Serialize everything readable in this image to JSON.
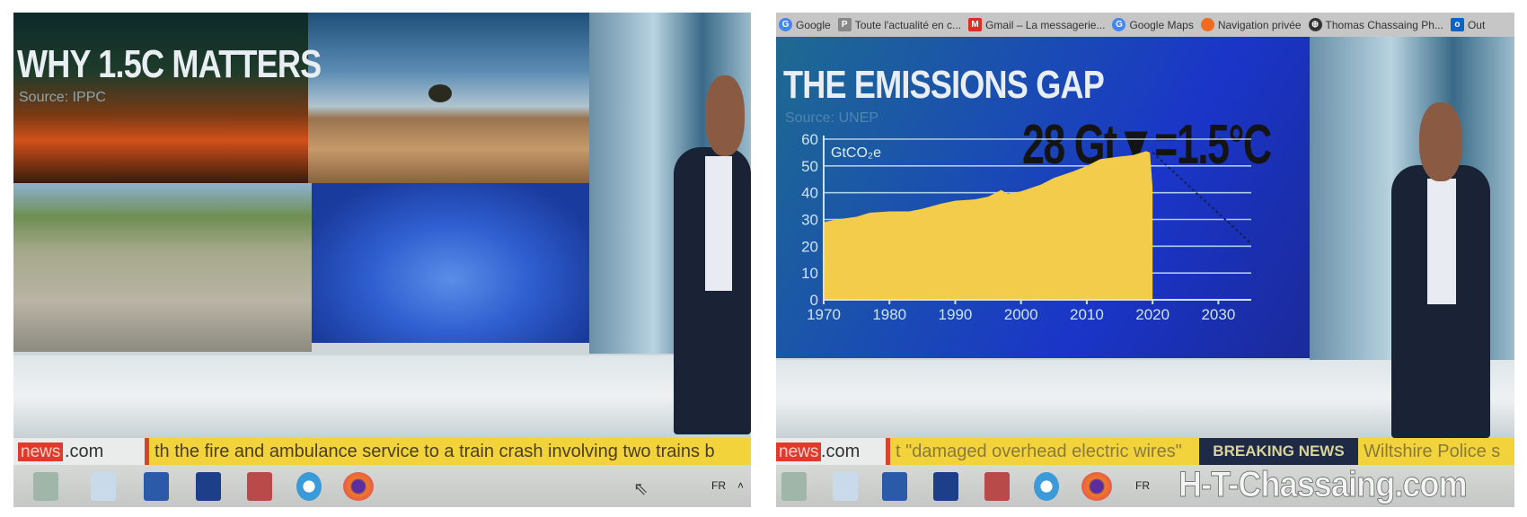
{
  "left_screen": {
    "title": "WHY 1.5C MATTERS",
    "source": "Source: IPPC",
    "ticker": {
      "logo": "news",
      "domain": ".com",
      "text": "th the fire and ambulance service to a train crash involving two trains b"
    },
    "taskbar": {
      "icons": [
        "calculator-icon",
        "wordpad-icon",
        "word-icon",
        "photoshop-icon",
        "paint-icon",
        "internet-explorer-icon",
        "firefox-icon"
      ],
      "language": "FR",
      "tray_toggle": "˄"
    }
  },
  "right_screen": {
    "bookmarks": [
      {
        "label": "Google",
        "icon": "google-icon"
      },
      {
        "label": "Toute l'actualité en c...",
        "icon": "news-site-icon"
      },
      {
        "label": "Gmail – La messagerie...",
        "icon": "gmail-icon"
      },
      {
        "label": "Google Maps",
        "icon": "google-icon"
      },
      {
        "label": "Navigation privée",
        "icon": "firefox-icon"
      },
      {
        "label": "Thomas Chassaing Ph...",
        "icon": "globe-icon"
      },
      {
        "label": "Out",
        "icon": "outlook-icon"
      }
    ],
    "title": "THE EMISSIONS GAP",
    "source": "Source: UNEP",
    "headline": "28 Gt▼=1.5°C",
    "ticker": {
      "logo": "news",
      "domain": ".com",
      "text": "t \"damaged overhead electric wires\"",
      "breaking": "BREAKING NEWS",
      "text2": "Wiltshire Police s"
    },
    "taskbar": {
      "icons": [
        "calculator-icon",
        "wordpad-icon",
        "word-icon",
        "photoshop-icon",
        "paint-icon",
        "internet-explorer-icon",
        "firefox-icon"
      ],
      "language": "FR"
    },
    "watermark": "H-T-Chassaing.com"
  },
  "chart_data": {
    "type": "area",
    "title": "THE EMISSIONS GAP",
    "subtitle": "Source: UNEP",
    "ylabel": "GtCO₂e",
    "xlim": [
      1970,
      2035
    ],
    "ylim": [
      0,
      60
    ],
    "xticks": [
      "1970",
      "1980",
      "1990",
      "2000",
      "2010",
      "2020",
      "2030"
    ],
    "yticks": [
      "0",
      "10",
      "20",
      "30",
      "40",
      "50",
      "60"
    ],
    "grid": true,
    "fill_color": "#f2cc4a",
    "series": [
      {
        "x": [
          1970,
          1972,
          1975,
          1977,
          1980,
          1983,
          1985,
          1988,
          1990,
          1993,
          1995,
          1997,
          1998,
          2000,
          2003,
          2005,
          2008,
          2010,
          2012,
          2015,
          2017,
          2019,
          2019.6,
          2020
        ],
        "y": [
          29,
          30,
          31,
          32.5,
          33,
          33,
          34,
          36,
          37,
          37.5,
          38.5,
          41,
          39.5,
          40.5,
          43,
          45.5,
          48,
          50,
          52.5,
          53.5,
          54,
          55.5,
          55,
          42
        ]
      }
    ],
    "pathway": {
      "style": "dashed",
      "x": [
        2020,
        2035
      ],
      "y": [
        55,
        21
      ]
    }
  }
}
